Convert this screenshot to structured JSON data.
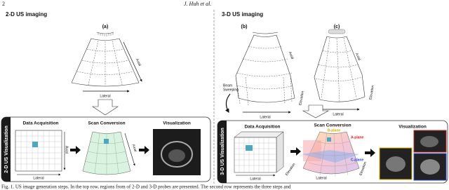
{
  "header": {
    "page": "2",
    "author": "J. Huh et al."
  },
  "left": {
    "title": "2-D US imaging",
    "a": {
      "label": "(a)",
      "axial": "Axial",
      "lateral": "Lateral"
    },
    "row": {
      "title": "2-D US Visualization",
      "steps": [
        "Data Acquisition",
        "Scan Conversion",
        "Visualization"
      ],
      "acq_axial": "Axial",
      "acq_lateral": "Lateral",
      "scan_axial": "Axial"
    }
  },
  "right": {
    "title": "3-D US imaging",
    "b": {
      "label": "(b)",
      "sweep": [
        "Beam",
        "Sweeping"
      ],
      "axial": "Axial",
      "elevation": "Elevation",
      "lateral": "Lateral"
    },
    "c": {
      "label": "(c)",
      "axial": "Axial",
      "elevation": "Elevation",
      "lateral": "Lateral"
    },
    "row": {
      "title": "3-D US Visualization",
      "steps": [
        "Data Acquisition",
        "Scan Conversion",
        "Visualization"
      ],
      "acq_lateral": "Lateral",
      "acq_elevation": "Elevation",
      "planes": [
        "B-plane",
        "A-plane",
        "C-plane"
      ],
      "scan_lateral": "Lateral",
      "scan_elevation": "Elevation"
    }
  },
  "caption": "Fig. 1. US image generation steps. In the top row, regions from of 2-D and 3-D probes are presented. The second row represents the three steps and"
}
